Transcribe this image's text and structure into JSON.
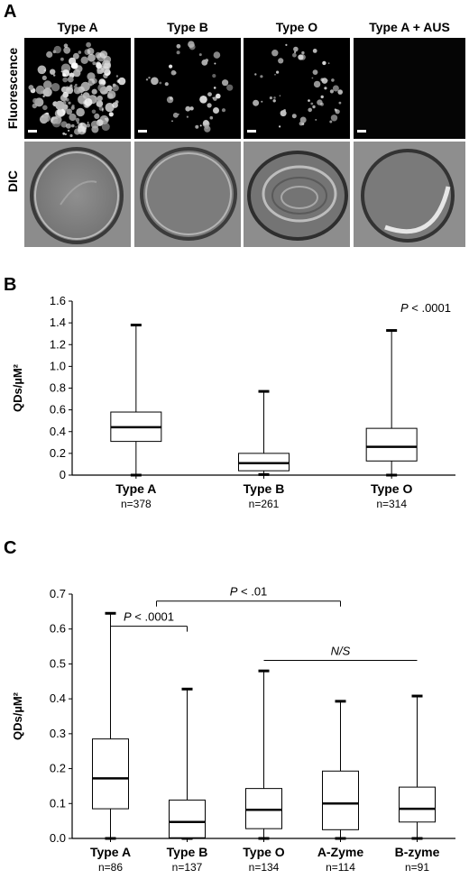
{
  "panel_a": {
    "letter": "A",
    "columns": [
      "Type A",
      "Type B",
      "Type O",
      "Type A + AUS"
    ],
    "rows": [
      "Fluorescence",
      "DIC"
    ]
  },
  "panel_b": {
    "letter": "B",
    "chart_data": {
      "type": "box",
      "ylabel": "QDs/µM²",
      "ylim": [
        0,
        1.6
      ],
      "yticks": [
        "0",
        "0.2",
        "0.4",
        "0.6",
        "0.8",
        "1.0",
        "1.2",
        "1.4",
        "1.6"
      ],
      "annotation": "P < .0001",
      "groups": [
        {
          "name": "Type A",
          "n": "n=378",
          "min": 0,
          "q1": 0.31,
          "median": 0.44,
          "q3": 0.58,
          "max": 1.38
        },
        {
          "name": "Type B",
          "n": "n=261",
          "min": 0.005,
          "q1": 0.04,
          "median": 0.11,
          "q3": 0.2,
          "max": 0.77
        },
        {
          "name": "Type O",
          "n": "n=314",
          "min": 0,
          "q1": 0.13,
          "median": 0.26,
          "q3": 0.43,
          "max": 1.33
        }
      ]
    }
  },
  "panel_c": {
    "letter": "C",
    "chart_data": {
      "type": "box",
      "ylabel": "QDs/µM²",
      "ylim": [
        0,
        0.7
      ],
      "yticks": [
        "0.0",
        "0.1",
        "0.2",
        "0.3",
        "0.4",
        "0.5",
        "0.6",
        "0.7"
      ],
      "groups": [
        {
          "name": "Type A",
          "n": "n=86",
          "min": 0,
          "q1": 0.085,
          "median": 0.172,
          "q3": 0.285,
          "max": 0.645
        },
        {
          "name": "Type B",
          "n": "n=137",
          "min": 0,
          "q1": 0.002,
          "median": 0.047,
          "q3": 0.11,
          "max": 0.428
        },
        {
          "name": "Type O",
          "n": "n=134",
          "min": 0,
          "q1": 0.028,
          "median": 0.082,
          "q3": 0.143,
          "max": 0.48
        },
        {
          "name": "A-Zyme",
          "n": "n=114",
          "min": 0,
          "q1": 0.025,
          "median": 0.1,
          "q3": 0.193,
          "max": 0.393
        },
        {
          "name": "B-zyme",
          "n": "n=91",
          "min": 0,
          "q1": 0.047,
          "median": 0.085,
          "q3": 0.147,
          "max": 0.408
        }
      ],
      "annotations": [
        {
          "text": "P < .0001",
          "from": 0,
          "to": 1,
          "y": 0.608,
          "italic_word": "P"
        },
        {
          "text": "P < .01",
          "from": 0.6,
          "to": 3,
          "y": 0.68,
          "italic_word": "P"
        },
        {
          "text": "N/S",
          "from": 2,
          "to": 4,
          "y": 0.51,
          "italic_all": true
        }
      ]
    }
  }
}
